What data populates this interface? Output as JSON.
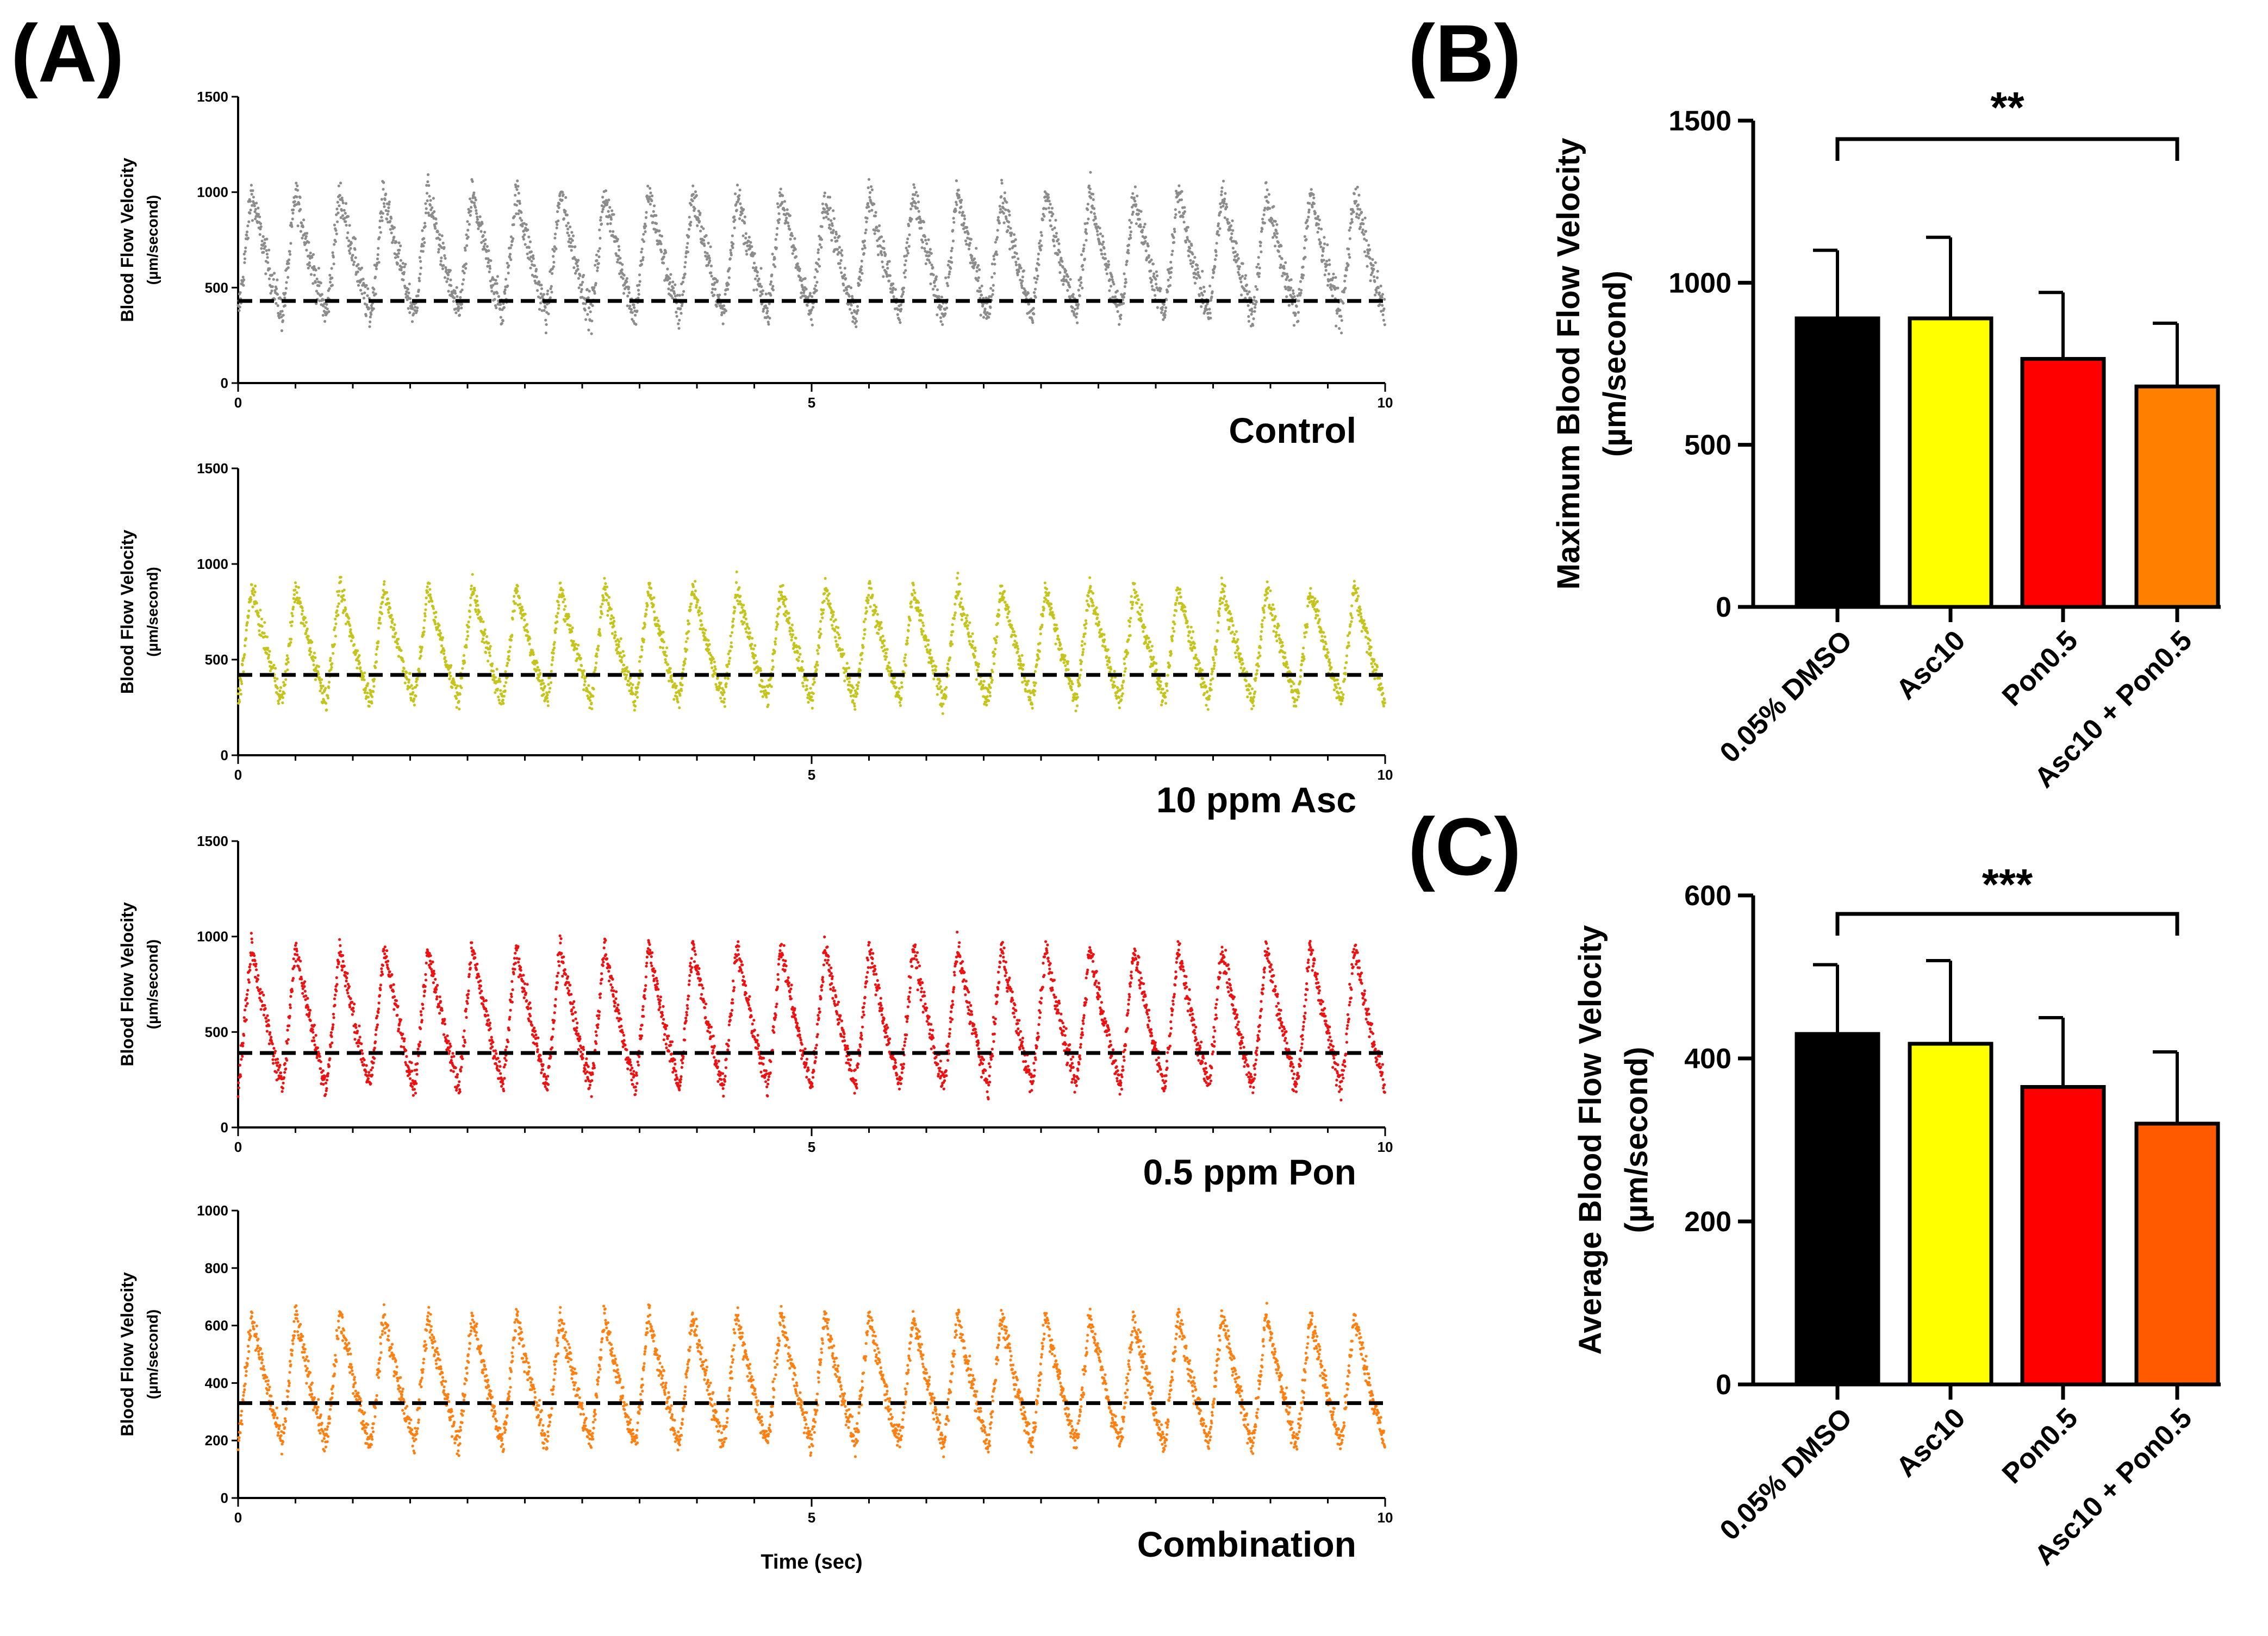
{
  "panels": {
    "a_letter": "(A)",
    "b_letter": "(B)",
    "c_letter": "(C)"
  },
  "chart_data": [
    {
      "id": "A1",
      "type": "scatter",
      "label": "Control",
      "color": "#8c8c8c",
      "ylabel_line1": "Blood Flow Velocity",
      "ylabel_line2": "(µm/second)",
      "xlabel": "",
      "xlim": [
        0,
        10
      ],
      "ylim": [
        0,
        1500
      ],
      "xticks": [
        0,
        5,
        10
      ],
      "yticks": [
        0,
        500,
        1000,
        1500
      ],
      "mean": 430,
      "waveform": {
        "beats": 26,
        "trough": 360,
        "peak": 1000,
        "noise": 160
      }
    },
    {
      "id": "A2",
      "type": "scatter",
      "label": "10 ppm Asc",
      "color": "#c4c41c",
      "ylabel_line1": "Blood Flow Velocity",
      "ylabel_line2": "(µm/second)",
      "xlabel": "",
      "xlim": [
        0,
        10
      ],
      "ylim": [
        0,
        1500
      ],
      "xticks": [
        0,
        5,
        10
      ],
      "yticks": [
        0,
        500,
        1000,
        1500
      ],
      "mean": 420,
      "waveform": {
        "beats": 26,
        "trough": 290,
        "peak": 880,
        "noise": 110
      }
    },
    {
      "id": "A3",
      "type": "scatter",
      "label": "0.5 ppm Pon",
      "color": "#ee1111",
      "ylabel_line1": "Blood Flow Velocity",
      "ylabel_line2": "(µm/second)",
      "xlabel": "",
      "xlim": [
        0,
        10
      ],
      "ylim": [
        0,
        1500
      ],
      "xticks": [
        0,
        5,
        10
      ],
      "yticks": [
        0,
        500,
        1000,
        1500
      ],
      "mean": 390,
      "waveform": {
        "beats": 26,
        "trough": 220,
        "peak": 950,
        "noise": 120
      }
    },
    {
      "id": "A4",
      "type": "scatter",
      "label": "Combination",
      "color": "#ff7f11",
      "ylabel_line1": "Blood Flow Velocity",
      "ylabel_line2": "(µm/second)",
      "xlabel": "Time (sec)",
      "xlim": [
        0,
        10
      ],
      "ylim": [
        0,
        1000
      ],
      "xticks": [
        0,
        5,
        10
      ],
      "yticks": [
        0,
        200,
        400,
        600,
        800,
        1000
      ],
      "mean": 330,
      "waveform": {
        "beats": 26,
        "trough": 190,
        "peak": 640,
        "noise": 80
      }
    },
    {
      "id": "B",
      "type": "bar",
      "ylabel_line1": "Maximum Blood Flow Velocity",
      "ylabel_line2": "(µm/second)",
      "categories": [
        "0.05% DMSO",
        "Asc10",
        "Pon0.5",
        "Asc10 + Pon0.5"
      ],
      "values": [
        890,
        890,
        765,
        680
      ],
      "errors": [
        210,
        250,
        205,
        195
      ],
      "colors": [
        "#000000",
        "#ffff00",
        "#ff0000",
        "#ff8000"
      ],
      "ylim": [
        0,
        1500
      ],
      "yticks": [
        0,
        500,
        1000,
        1500
      ],
      "significance": "**",
      "sig_between": [
        0,
        3
      ]
    },
    {
      "id": "C",
      "type": "bar",
      "ylabel_line1": "Average Blood Flow Velocity",
      "ylabel_line2": "(µm/second)",
      "categories": [
        "0.05% DMSO",
        "Asc10",
        "Pon0.5",
        "Asc10 + Pon0.5"
      ],
      "values": [
        430,
        418,
        365,
        320
      ],
      "errors": [
        85,
        102,
        85,
        88
      ],
      "colors": [
        "#000000",
        "#ffff00",
        "#ff0000",
        "#ff5a00"
      ],
      "ylim": [
        0,
        600
      ],
      "yticks": [
        0,
        200,
        400,
        600
      ],
      "significance": "***",
      "sig_between": [
        0,
        3
      ]
    }
  ]
}
